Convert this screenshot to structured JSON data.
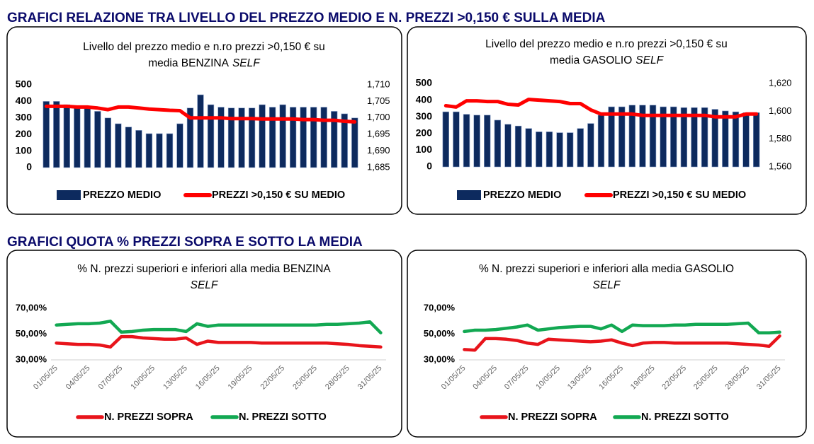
{
  "headings": [
    "GRAFICI RELAZIONE TRA LIVELLO DEL PREZZO MEDIO E N. PREZZI >0,150 € SULLA MEDIA",
    "GRAFICI QUOTA % PREZZI SOPRA E SOTTO LA MEDIA"
  ],
  "chart_data": [
    {
      "type": "combo",
      "title": [
        "Livello del prezzo medio e n.ro prezzi >0,150 € su",
        "media BENZINA"
      ],
      "title_italic": "SELF",
      "categories": [
        null,
        null,
        null,
        null,
        null,
        null,
        null,
        null,
        null,
        null,
        null,
        null,
        null,
        null,
        null,
        null,
        null,
        null,
        null,
        null,
        null,
        null,
        null,
        null,
        null,
        null,
        null,
        null,
        null,
        null,
        null
      ],
      "ylim": [
        0,
        500
      ],
      "yticks": [
        0,
        100,
        200,
        300,
        400,
        500
      ],
      "y2lim": [
        1.685,
        1.71
      ],
      "y2ticks": [
        {
          "value": 1.685,
          "label": "1,685"
        },
        {
          "value": 1.69,
          "label": "1,690"
        },
        {
          "value": 1.695,
          "label": "1,695"
        },
        {
          "value": 1.7,
          "label": "1,700"
        },
        {
          "value": 1.705,
          "label": "1,705"
        },
        {
          "value": 1.71,
          "label": "1,710"
        }
      ],
      "grid": false,
      "series": [
        {
          "name": "PREZZO MEDIO",
          "kind": "bar",
          "color": "#0d2a5e",
          "values": [
            400,
            400,
            380,
            370,
            360,
            340,
            300,
            265,
            245,
            225,
            205,
            205,
            205,
            265,
            360,
            440,
            380,
            365,
            360,
            360,
            360,
            380,
            365,
            380,
            365,
            365,
            365,
            365,
            340,
            325,
            300
          ]
        },
        {
          "name": "PREZZI >0,150 € SU MEDIO",
          "kind": "line",
          "axis": "y2",
          "color": "#ff0000",
          "values": [
            1.7035,
            1.7035,
            1.7035,
            1.7033,
            1.7033,
            1.703,
            1.7025,
            1.7033,
            1.7033,
            1.703,
            1.7027,
            1.7025,
            1.7023,
            1.7022,
            1.7,
            1.7,
            1.7,
            1.7,
            1.6998,
            1.6998,
            1.6998,
            1.6997,
            1.6997,
            1.6997,
            1.6997,
            1.6995,
            1.6995,
            1.6993,
            1.6993,
            1.699,
            1.6988
          ]
        }
      ]
    },
    {
      "type": "combo",
      "title": [
        "Livello del prezzo medio e n.ro prezzi >0,150 € su",
        "media GASOLIO"
      ],
      "title_italic": "SELF",
      "categories": [
        null,
        null,
        null,
        null,
        null,
        null,
        null,
        null,
        null,
        null,
        null,
        null,
        null,
        null,
        null,
        null,
        null,
        null,
        null,
        null,
        null,
        null,
        null,
        null,
        null,
        null,
        null,
        null,
        null,
        null,
        null
      ],
      "ylim": [
        0,
        500
      ],
      "yticks": [
        0,
        100,
        200,
        300,
        400,
        500
      ],
      "y2lim": [
        1.56,
        1.62
      ],
      "y2ticks": [
        {
          "value": 1.56,
          "label": "1,560"
        },
        {
          "value": 1.58,
          "label": "1,580"
        },
        {
          "value": 1.6,
          "label": "1,600"
        },
        {
          "value": 1.62,
          "label": "1,620"
        }
      ],
      "grid": false,
      "series": [
        {
          "name": "PREZZO MEDIO",
          "kind": "bar",
          "color": "#0d2a5e",
          "values": [
            330,
            330,
            315,
            310,
            310,
            280,
            255,
            245,
            230,
            210,
            210,
            205,
            205,
            230,
            260,
            310,
            360,
            360,
            370,
            370,
            370,
            360,
            360,
            355,
            355,
            355,
            345,
            335,
            330,
            325,
            325
          ]
        },
        {
          "name": "PREZZI >0,150 € SU MEDIO",
          "kind": "line",
          "axis": "y2",
          "color": "#ff0000",
          "values": [
            1.604,
            1.603,
            1.6075,
            1.6075,
            1.607,
            1.607,
            1.605,
            1.6045,
            1.6085,
            1.608,
            1.6075,
            1.607,
            1.6055,
            1.6055,
            1.601,
            1.598,
            1.598,
            1.598,
            1.598,
            1.597,
            1.597,
            1.597,
            1.597,
            1.597,
            1.597,
            1.597,
            1.596,
            1.596,
            1.596,
            1.598,
            1.598
          ]
        }
      ]
    },
    {
      "type": "line",
      "title": [
        "% N. prezzi superiori e inferiori alla media BENZINA"
      ],
      "title_italic": "SELF",
      "categories": [
        "01/05/25",
        null,
        null,
        "04/05/25",
        null,
        null,
        "07/05/25",
        null,
        null,
        "10/05/25",
        null,
        null,
        "13/05/25",
        null,
        null,
        "16/05/25",
        null,
        null,
        "19/05/25",
        null,
        null,
        "22/05/25",
        null,
        null,
        "25/05/25",
        null,
        null,
        "28/05/25",
        null,
        null,
        "31/05/25"
      ],
      "ylim": [
        30,
        70
      ],
      "yticks": [
        {
          "value": 30,
          "label": "30,00%"
        },
        {
          "value": 50,
          "label": "50,00%"
        },
        {
          "value": 70,
          "label": "70,00%"
        }
      ],
      "grid": false,
      "series": [
        {
          "name": "N. PREZZI SOPRA",
          "kind": "line",
          "color": "#e8141b",
          "values": [
            43,
            42.5,
            42,
            42,
            41.5,
            40,
            48,
            48,
            47,
            46.5,
            46,
            46,
            47,
            42,
            44.5,
            43.5,
            43.5,
            43.5,
            43.5,
            43,
            43,
            43,
            43,
            43,
            43,
            43,
            42.5,
            42,
            41,
            40.5,
            40
          ]
        },
        {
          "name": "N. PREZZI SOTTO",
          "kind": "line",
          "color": "#12a852",
          "values": [
            57,
            57.5,
            58,
            58,
            58.5,
            60,
            51.5,
            52,
            53,
            53.5,
            53.5,
            53.5,
            52,
            58,
            56,
            57,
            57,
            57,
            57,
            57,
            57,
            57,
            57,
            57,
            57,
            57.5,
            57.5,
            58,
            58.5,
            59.5,
            51
          ]
        }
      ]
    },
    {
      "type": "line",
      "title": [
        "% N. prezzi superiori e inferiori alla media GASOLIO"
      ],
      "title_italic": "SELF",
      "categories": [
        "01/05/25",
        null,
        null,
        "04/05/25",
        null,
        null,
        "07/05/25",
        null,
        null,
        "10/05/25",
        null,
        null,
        "13/05/25",
        null,
        null,
        "16/05/25",
        null,
        null,
        "19/05/25",
        null,
        null,
        "22/05/25",
        null,
        null,
        "25/05/25",
        null,
        null,
        "28/05/25",
        null,
        null,
        "31/05/25"
      ],
      "ylim": [
        30,
        70
      ],
      "yticks": [
        {
          "value": 30,
          "label": "30,00%"
        },
        {
          "value": 50,
          "label": "50,00%"
        },
        {
          "value": 70,
          "label": "70,00%"
        }
      ],
      "grid": false,
      "series": [
        {
          "name": "N. PREZZI SOPRA",
          "kind": "line",
          "color": "#e8141b",
          "values": [
            38,
            37.5,
            46.5,
            46.5,
            46,
            45,
            43,
            42,
            46,
            45.5,
            45,
            44.5,
            44,
            44.5,
            45.5,
            43,
            41,
            43,
            43.5,
            43.5,
            43,
            43,
            43,
            43,
            43,
            43,
            42.5,
            42,
            41.5,
            40.5,
            48.5
          ]
        },
        {
          "name": "N. PREZZI SOTTO",
          "kind": "line",
          "color": "#12a852",
          "values": [
            52,
            53,
            53,
            53.5,
            54.5,
            55.5,
            57,
            53,
            54,
            55,
            55.5,
            56,
            56,
            54,
            57,
            52,
            57,
            56.5,
            56.5,
            56.5,
            57,
            57,
            57.5,
            57.5,
            57.5,
            57.5,
            58,
            58.5,
            51,
            51,
            51.5
          ]
        }
      ]
    }
  ]
}
